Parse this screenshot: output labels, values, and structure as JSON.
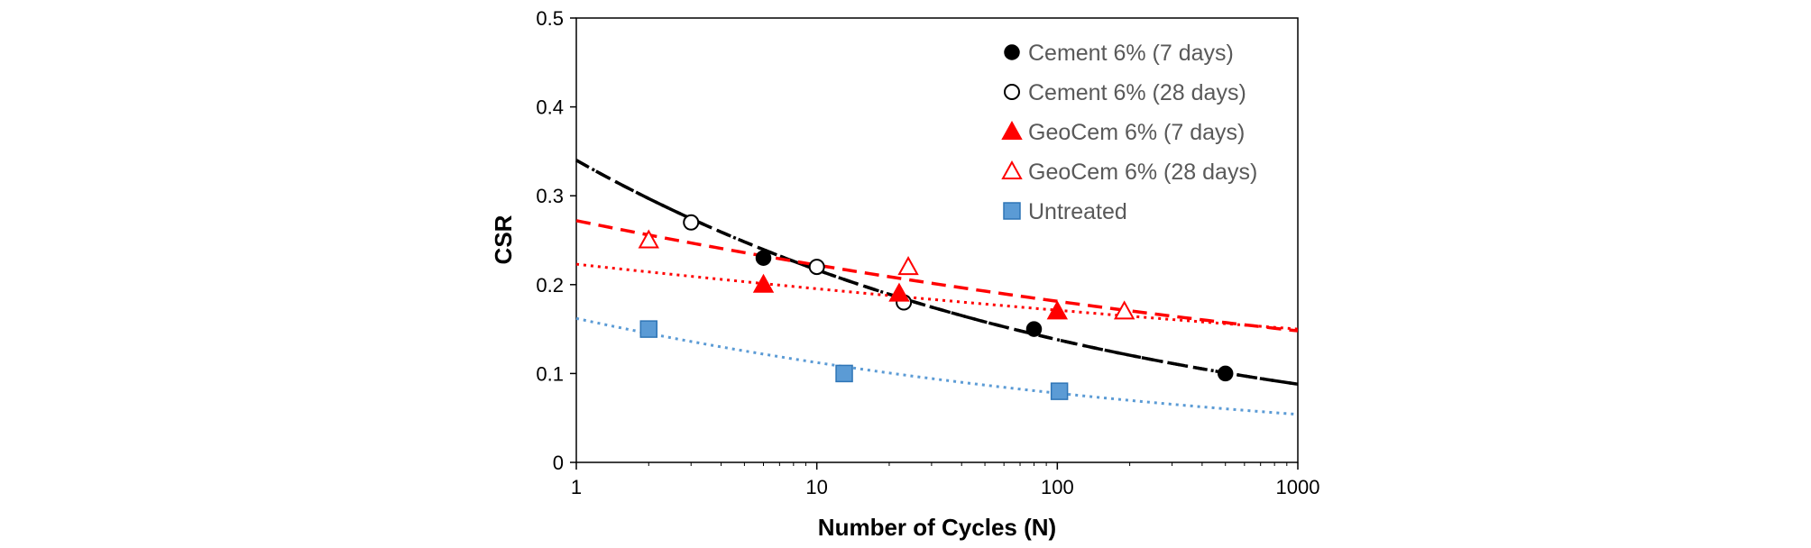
{
  "chart_data": {
    "type": "scatter",
    "title": "",
    "xlabel": "Number of Cycles (N)",
    "ylabel": "CSR",
    "x_scale": "log",
    "xlim": [
      1,
      1000
    ],
    "ylim": [
      0,
      0.5
    ],
    "x_ticks": [
      1,
      10,
      100,
      1000
    ],
    "x_tick_labels": [
      "1",
      "10",
      "100",
      "1000"
    ],
    "y_ticks": [
      0,
      0.1,
      0.2,
      0.3,
      0.4,
      0.5
    ],
    "y_tick_labels": [
      "0",
      "0.1",
      "0.2",
      "0.3",
      "0.4",
      "0.5"
    ],
    "grid": false,
    "legend_position": "top-right",
    "series": [
      {
        "name": "Cement 6% (7 days)",
        "marker": "filled-circle",
        "color": "#000000",
        "x": [
          6,
          80,
          500
        ],
        "y": [
          0.23,
          0.15,
          0.1
        ],
        "trendline": {
          "style": "dash-dot",
          "color": "#000000",
          "x": [
            1,
            1000
          ],
          "y": [
            0.34,
            0.088
          ]
        }
      },
      {
        "name": "Cement 6% (28 days)",
        "marker": "open-circle",
        "color": "#000000",
        "x": [
          3,
          10,
          23
        ],
        "y": [
          0.27,
          0.22,
          0.18
        ],
        "trendline": {
          "style": "dashed",
          "color": "#000000",
          "x": [
            1,
            1000
          ],
          "y": [
            0.34,
            0.088
          ]
        }
      },
      {
        "name": "GeoCem 6% (7 days)",
        "marker": "filled-triangle",
        "color": "#ff0000",
        "x": [
          6,
          22,
          100
        ],
        "y": [
          0.2,
          0.19,
          0.17
        ],
        "trendline": {
          "style": "dotted",
          "color": "#ff0000",
          "x": [
            1,
            1000
          ],
          "y": [
            0.223,
            0.15
          ]
        }
      },
      {
        "name": "GeoCem 6% (28 days)",
        "marker": "open-triangle",
        "color": "#ff0000",
        "x": [
          2,
          24,
          190
        ],
        "y": [
          0.25,
          0.22,
          0.17
        ],
        "trendline": {
          "style": "dashed",
          "color": "#ff0000",
          "x": [
            1,
            1000
          ],
          "y": [
            0.272,
            0.148
          ]
        }
      },
      {
        "name": "Untreated",
        "marker": "square",
        "color": "#5b9bd5",
        "x": [
          2,
          13,
          102
        ],
        "y": [
          0.15,
          0.1,
          0.08
        ],
        "trendline": {
          "style": "dotted",
          "color": "#5b9bd5",
          "x": [
            1,
            1000
          ],
          "y": [
            0.162,
            0.054
          ]
        }
      }
    ]
  }
}
